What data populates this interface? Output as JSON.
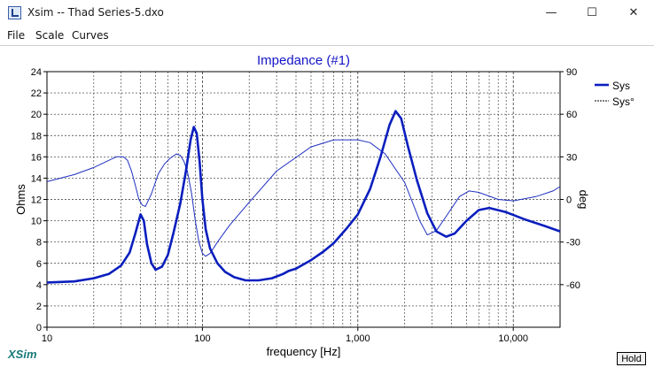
{
  "window": {
    "title": "Xsim -- Thad Series-5.dxo",
    "minimize_glyph": "—",
    "maximize_glyph": "☐",
    "close_glyph": "✕"
  },
  "menu": [
    "File",
    "Scale",
    "Curves"
  ],
  "logo": "XSim",
  "hold_label": "Hold",
  "chart_data": {
    "type": "line",
    "title": "Impedance (#1)",
    "xlabel": "frequency [Hz]",
    "ylabel": "Ohms",
    "y2label": "deg",
    "x_scale": "log",
    "xlim": [
      10,
      20000
    ],
    "ylim": [
      0,
      24
    ],
    "y2lim": [
      -90,
      90
    ],
    "x_ticks": [
      {
        "value": 10,
        "label": "10"
      },
      {
        "value": 100,
        "label": "100"
      },
      {
        "value": 1000,
        "label": "1,000"
      },
      {
        "value": 10000,
        "label": "10,000"
      }
    ],
    "y_ticks": [
      0,
      2,
      4,
      6,
      8,
      10,
      12,
      14,
      16,
      18,
      20,
      22,
      24
    ],
    "y2_ticks": [
      90,
      60,
      30,
      0,
      -30,
      -60
    ],
    "grid": true,
    "legend_position": "top-right",
    "colors": {
      "title": "#1414c8",
      "sys": "#0a1ebe",
      "phase": "#2030c0",
      "grid": "#000000",
      "axis_text": "#000000"
    },
    "series": [
      {
        "name": "Sys",
        "axis": "left",
        "style": "thick-solid",
        "points": [
          [
            10,
            4.2
          ],
          [
            15,
            4.3
          ],
          [
            20,
            4.6
          ],
          [
            25,
            5.0
          ],
          [
            30,
            5.8
          ],
          [
            34,
            7.0
          ],
          [
            37,
            8.8
          ],
          [
            40,
            10.6
          ],
          [
            42,
            10.0
          ],
          [
            44,
            7.8
          ],
          [
            47,
            6.0
          ],
          [
            50,
            5.4
          ],
          [
            55,
            5.7
          ],
          [
            60,
            6.8
          ],
          [
            65,
            8.8
          ],
          [
            72,
            11.6
          ],
          [
            78,
            14.5
          ],
          [
            84,
            17.6
          ],
          [
            88,
            18.8
          ],
          [
            92,
            18.2
          ],
          [
            96,
            15.5
          ],
          [
            100,
            12.0
          ],
          [
            105,
            9.2
          ],
          [
            112,
            7.4
          ],
          [
            125,
            6.0
          ],
          [
            140,
            5.2
          ],
          [
            160,
            4.7
          ],
          [
            190,
            4.4
          ],
          [
            230,
            4.4
          ],
          [
            280,
            4.6
          ],
          [
            330,
            5.0
          ],
          [
            360,
            5.3
          ],
          [
            400,
            5.5
          ],
          [
            500,
            6.3
          ],
          [
            600,
            7.1
          ],
          [
            700,
            7.9
          ],
          [
            850,
            9.3
          ],
          [
            1000,
            10.6
          ],
          [
            1200,
            13.0
          ],
          [
            1400,
            16.0
          ],
          [
            1600,
            19.0
          ],
          [
            1750,
            20.3
          ],
          [
            1900,
            19.6
          ],
          [
            2100,
            17.0
          ],
          [
            2400,
            13.8
          ],
          [
            2800,
            10.7
          ],
          [
            3200,
            9.0
          ],
          [
            3700,
            8.5
          ],
          [
            4200,
            8.8
          ],
          [
            5000,
            10.0
          ],
          [
            6000,
            11.0
          ],
          [
            7000,
            11.2
          ],
          [
            9000,
            10.8
          ],
          [
            12000,
            10.1
          ],
          [
            16000,
            9.5
          ],
          [
            20000,
            9.0
          ]
        ]
      },
      {
        "name": "Sys°",
        "axis": "right",
        "style": "thin-solid",
        "points": [
          [
            10,
            12.5
          ],
          [
            15,
            17.5
          ],
          [
            20,
            22.5
          ],
          [
            25,
            27.5
          ],
          [
            28,
            30
          ],
          [
            31,
            30
          ],
          [
            33,
            27.5
          ],
          [
            35,
            20
          ],
          [
            37,
            10
          ],
          [
            39,
            0
          ],
          [
            41,
            -4
          ],
          [
            43,
            -5
          ],
          [
            47,
            4
          ],
          [
            52,
            18
          ],
          [
            57,
            25
          ],
          [
            62,
            29
          ],
          [
            68,
            32
          ],
          [
            72,
            31
          ],
          [
            76,
            27
          ],
          [
            80,
            20
          ],
          [
            85,
            5
          ],
          [
            90,
            -15
          ],
          [
            95,
            -30
          ],
          [
            100,
            -38
          ],
          [
            105,
            -40
          ],
          [
            112,
            -38
          ],
          [
            125,
            -30
          ],
          [
            150,
            -18
          ],
          [
            200,
            -2
          ],
          [
            300,
            20
          ],
          [
            500,
            37
          ],
          [
            700,
            42
          ],
          [
            1000,
            42
          ],
          [
            1200,
            40
          ],
          [
            1500,
            32
          ],
          [
            2000,
            12
          ],
          [
            2500,
            -15
          ],
          [
            2800,
            -25
          ],
          [
            3200,
            -22
          ],
          [
            3800,
            -10
          ],
          [
            4500,
            2
          ],
          [
            5200,
            6
          ],
          [
            6000,
            5
          ],
          [
            8000,
            0
          ],
          [
            10000,
            -1
          ],
          [
            14000,
            2
          ],
          [
            18000,
            6
          ],
          [
            20000,
            9
          ]
        ]
      }
    ]
  }
}
